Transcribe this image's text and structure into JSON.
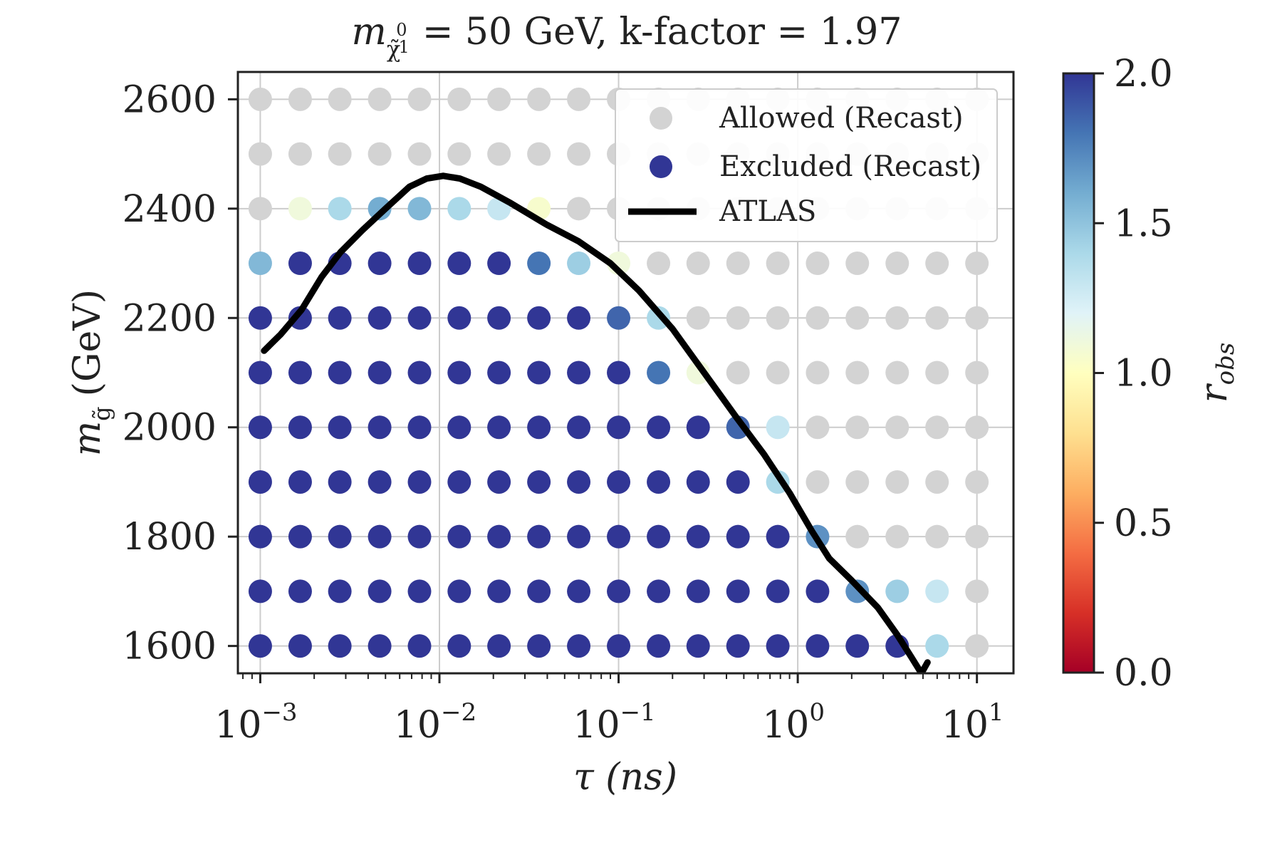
{
  "chart_data": {
    "type": "scatter",
    "title_main": "m",
    "title_sub": "χ̃",
    "title_sup": "0",
    "title_subsub": "1",
    "title_rest": "= 50 GeV, k-factor = 1.97",
    "xlabel": "τ (ns)",
    "ylabel_main": "m",
    "ylabel_sub": "g̃",
    "ylabel_rest": "(GeV)",
    "x_scale": "log",
    "xlim": [
      0.00075,
      16
    ],
    "ylim": [
      1550,
      2650
    ],
    "x_tick_exponents": [
      "−3",
      "−2",
      "−1",
      "0",
      "1"
    ],
    "y_ticks": [
      1600,
      1800,
      2000,
      2200,
      2400,
      2600
    ],
    "x_grid": [
      0.001,
      0.00167,
      0.00278,
      0.00464,
      0.00774,
      0.0129,
      0.0215,
      0.0359,
      0.0599,
      0.1,
      0.167,
      0.278,
      0.464,
      0.774,
      1.29,
      2.15,
      3.59,
      5.99,
      10
    ],
    "y_grid": [
      1600,
      1700,
      1800,
      1900,
      2000,
      2100,
      2200,
      2300,
      2400,
      2500,
      2600
    ],
    "grid": true,
    "legend_position": "top-right",
    "legend": [
      "Allowed (Recast)",
      "Excluded (Recast)",
      "ATLAS"
    ],
    "colorbar": {
      "label": "r",
      "label_sub": "obs",
      "range": [
        0.0,
        2.0
      ],
      "ticks": [
        "0.0",
        "0.5",
        "1.0",
        "1.5",
        "2.0"
      ],
      "colormap": "RdYlBu",
      "allowed_color": "#d3d3d3"
    },
    "r_obs": [
      [
        "E",
        "E",
        "E",
        "E",
        "E",
        "E",
        "E",
        "E",
        "E",
        "E",
        "E",
        "E",
        "E",
        "E",
        "E",
        "E",
        "E",
        1.4,
        "A"
      ],
      [
        "E",
        "E",
        "E",
        "E",
        "E",
        "E",
        "E",
        "E",
        "E",
        "E",
        "E",
        "E",
        "E",
        "E",
        "E",
        1.7,
        1.45,
        1.3,
        "A"
      ],
      [
        "E",
        "E",
        "E",
        "E",
        "E",
        "E",
        "E",
        "E",
        "E",
        "E",
        "E",
        "E",
        "E",
        "E",
        1.7,
        "A",
        "A",
        "A",
        "A"
      ],
      [
        "E",
        "E",
        "E",
        "E",
        "E",
        "E",
        "E",
        "E",
        "E",
        "E",
        "E",
        "E",
        "E",
        1.4,
        "A",
        "A",
        "A",
        "A",
        "A"
      ],
      [
        "E",
        "E",
        "E",
        "E",
        "E",
        "E",
        "E",
        "E",
        "E",
        "E",
        "E",
        "E",
        1.85,
        1.3,
        "A",
        "A",
        "A",
        "A",
        "A"
      ],
      [
        "E",
        "E",
        "E",
        "E",
        "E",
        "E",
        "E",
        "E",
        "E",
        "E",
        1.8,
        1.1,
        "A",
        "A",
        "A",
        "A",
        "A",
        "A",
        "A"
      ],
      [
        "E",
        "E",
        "E",
        "E",
        "E",
        "E",
        "E",
        "E",
        "E",
        1.85,
        1.4,
        "A",
        "A",
        "A",
        "A",
        "A",
        "A",
        "A",
        "A"
      ],
      [
        1.55,
        "E",
        "E",
        "E",
        "E",
        "E",
        "E",
        1.8,
        1.45,
        1.1,
        "A",
        "A",
        "A",
        "A",
        "A",
        "A",
        "A",
        "A",
        "A"
      ],
      [
        "A",
        1.1,
        1.4,
        1.6,
        1.55,
        1.4,
        1.3,
        1.05,
        "A",
        "A",
        "A",
        "A",
        "A",
        "A",
        "A",
        "A",
        "A",
        "A",
        "A"
      ],
      [
        "A",
        "A",
        "A",
        "A",
        "A",
        "A",
        "A",
        "A",
        "A",
        "A",
        "A",
        "A",
        "A",
        "A",
        "A",
        "A",
        "A",
        "A",
        "A"
      ],
      [
        "A",
        "A",
        "A",
        "A",
        "A",
        "A",
        "A",
        "A",
        "A",
        "A",
        "A",
        "A",
        "A",
        "A",
        "A",
        "A",
        "A",
        "A",
        "A"
      ]
    ],
    "atlas_curve": {
      "x": [
        0.00105,
        0.0013,
        0.0017,
        0.0022,
        0.0028,
        0.0037,
        0.005,
        0.0068,
        0.0085,
        0.0105,
        0.013,
        0.017,
        0.025,
        0.04,
        0.06,
        0.09,
        0.13,
        0.2,
        0.3,
        0.45,
        0.65,
        0.9,
        1.2,
        1.5,
        2.0,
        2.8,
        3.6,
        4.3,
        4.9,
        5.3
      ],
      "y": [
        2140,
        2170,
        2215,
        2275,
        2320,
        2360,
        2400,
        2440,
        2455,
        2460,
        2455,
        2440,
        2410,
        2370,
        2340,
        2300,
        2250,
        2180,
        2100,
        2020,
        1950,
        1880,
        1810,
        1760,
        1720,
        1670,
        1620,
        1580,
        1550,
        1570
      ]
    }
  }
}
